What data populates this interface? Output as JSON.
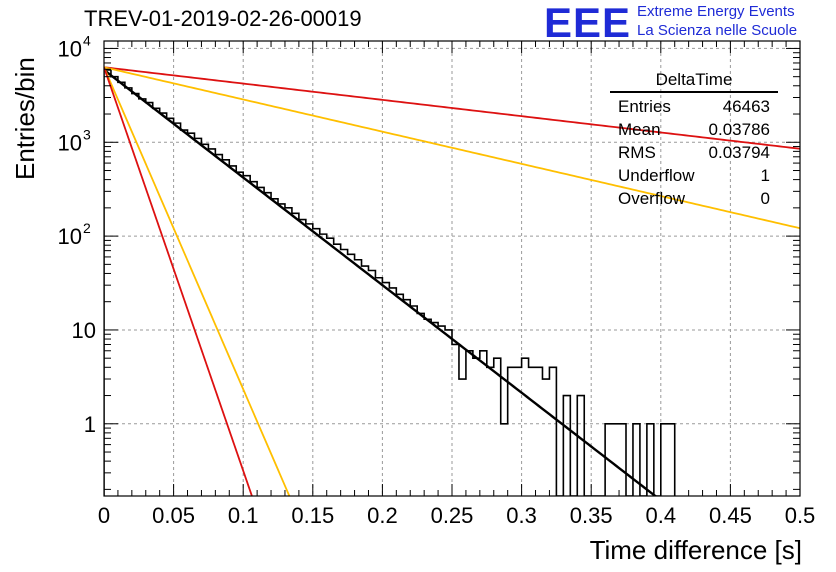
{
  "header": {
    "title": "TREV-01-2019-02-26-00019",
    "logo_text": "EEE",
    "logo_line1": "Extreme Energy Events",
    "logo_line2": "La Scienza nelle Scuole"
  },
  "stats": {
    "title": "DeltaTime",
    "rows": [
      {
        "key": "Entries",
        "value": "46463"
      },
      {
        "key": "Mean",
        "value": "0.03786"
      },
      {
        "key": "RMS",
        "value": "0.03794"
      },
      {
        "key": "Underflow",
        "value": "1"
      },
      {
        "key": "Overflow",
        "value": "0"
      }
    ]
  },
  "chart_data": {
    "type": "histogram",
    "title": "TREV-01-2019-02-26-00019",
    "xlabel": "Time difference [s]",
    "ylabel": "Entries/bin",
    "xlim": [
      0,
      0.5
    ],
    "ylim": [
      0.17,
      12000
    ],
    "ylog": true,
    "grid": true,
    "legend_position": "top-right",
    "x_ticks": [
      "0",
      "0.05",
      "0.1",
      "0.15",
      "0.2",
      "0.25",
      "0.3",
      "0.35",
      "0.4",
      "0.45",
      "0.5"
    ],
    "x_tick_values": [
      0,
      0.05,
      0.1,
      0.15,
      0.2,
      0.25,
      0.3,
      0.35,
      0.4,
      0.45,
      0.5
    ],
    "y_ticks": [
      {
        "value": 1,
        "label": "1",
        "sup": ""
      },
      {
        "value": 10,
        "label": "10",
        "sup": ""
      },
      {
        "value": 100,
        "label": "10",
        "sup": "2"
      },
      {
        "value": 1000,
        "label": "10",
        "sup": "3"
      },
      {
        "value": 10000,
        "label": "10",
        "sup": "4"
      }
    ],
    "bin_width": 0.005,
    "histogram": [
      {
        "x": 0.0,
        "y": 5900
      },
      {
        "x": 0.005,
        "y": 5000
      },
      {
        "x": 0.01,
        "y": 4350
      },
      {
        "x": 0.015,
        "y": 3800
      },
      {
        "x": 0.02,
        "y": 3300
      },
      {
        "x": 0.025,
        "y": 2900
      },
      {
        "x": 0.03,
        "y": 2650
      },
      {
        "x": 0.035,
        "y": 2300
      },
      {
        "x": 0.04,
        "y": 2050
      },
      {
        "x": 0.045,
        "y": 1800
      },
      {
        "x": 0.05,
        "y": 1600
      },
      {
        "x": 0.055,
        "y": 1350
      },
      {
        "x": 0.06,
        "y": 1250
      },
      {
        "x": 0.065,
        "y": 1100
      },
      {
        "x": 0.07,
        "y": 950
      },
      {
        "x": 0.075,
        "y": 850
      },
      {
        "x": 0.08,
        "y": 740
      },
      {
        "x": 0.085,
        "y": 650
      },
      {
        "x": 0.09,
        "y": 560
      },
      {
        "x": 0.095,
        "y": 480
      },
      {
        "x": 0.1,
        "y": 440
      },
      {
        "x": 0.105,
        "y": 380
      },
      {
        "x": 0.11,
        "y": 330
      },
      {
        "x": 0.115,
        "y": 290
      },
      {
        "x": 0.12,
        "y": 250
      },
      {
        "x": 0.125,
        "y": 220
      },
      {
        "x": 0.13,
        "y": 200
      },
      {
        "x": 0.135,
        "y": 175
      },
      {
        "x": 0.14,
        "y": 150
      },
      {
        "x": 0.145,
        "y": 135
      },
      {
        "x": 0.15,
        "y": 120
      },
      {
        "x": 0.155,
        "y": 105
      },
      {
        "x": 0.16,
        "y": 95
      },
      {
        "x": 0.165,
        "y": 82
      },
      {
        "x": 0.17,
        "y": 72
      },
      {
        "x": 0.175,
        "y": 64
      },
      {
        "x": 0.18,
        "y": 56
      },
      {
        "x": 0.185,
        "y": 48
      },
      {
        "x": 0.19,
        "y": 43
      },
      {
        "x": 0.195,
        "y": 36
      },
      {
        "x": 0.2,
        "y": 32
      },
      {
        "x": 0.205,
        "y": 28
      },
      {
        "x": 0.21,
        "y": 24
      },
      {
        "x": 0.215,
        "y": 21
      },
      {
        "x": 0.22,
        "y": 18
      },
      {
        "x": 0.225,
        "y": 15
      },
      {
        "x": 0.23,
        "y": 13
      },
      {
        "x": 0.235,
        "y": 12
      },
      {
        "x": 0.24,
        "y": 11
      },
      {
        "x": 0.245,
        "y": 10
      },
      {
        "x": 0.25,
        "y": 7
      },
      {
        "x": 0.255,
        "y": 3
      },
      {
        "x": 0.26,
        "y": 6
      },
      {
        "x": 0.265,
        "y": 5
      },
      {
        "x": 0.27,
        "y": 6
      },
      {
        "x": 0.275,
        "y": 4
      },
      {
        "x": 0.28,
        "y": 5
      },
      {
        "x": 0.285,
        "y": 1
      },
      {
        "x": 0.29,
        "y": 4
      },
      {
        "x": 0.295,
        "y": 4
      },
      {
        "x": 0.3,
        "y": 5
      },
      {
        "x": 0.305,
        "y": 4
      },
      {
        "x": 0.31,
        "y": 4
      },
      {
        "x": 0.315,
        "y": 3
      },
      {
        "x": 0.32,
        "y": 4
      },
      {
        "x": 0.325,
        "y": 0
      },
      {
        "x": 0.33,
        "y": 2
      },
      {
        "x": 0.335,
        "y": 0
      },
      {
        "x": 0.34,
        "y": 2
      },
      {
        "x": 0.345,
        "y": 0
      },
      {
        "x": 0.35,
        "y": 0
      },
      {
        "x": 0.355,
        "y": 0
      },
      {
        "x": 0.36,
        "y": 1
      },
      {
        "x": 0.365,
        "y": 1
      },
      {
        "x": 0.37,
        "y": 1
      },
      {
        "x": 0.375,
        "y": 0
      },
      {
        "x": 0.38,
        "y": 1
      },
      {
        "x": 0.385,
        "y": 0
      },
      {
        "x": 0.39,
        "y": 1
      },
      {
        "x": 0.395,
        "y": 0
      },
      {
        "x": 0.4,
        "y": 1
      },
      {
        "x": 0.405,
        "y": 1
      }
    ],
    "curves": [
      {
        "color": "#000000",
        "x_start": 0,
        "y_start": 5900,
        "decay_rate": 26.4,
        "x_end": 0.4
      },
      {
        "color": "#dd1111",
        "x_start": 0,
        "y_start": 6300,
        "decay_rate": 4.0,
        "x_end": 0.5
      },
      {
        "color": "#ffbf00",
        "x_start": 0,
        "y_start": 6300,
        "decay_rate": 7.9,
        "x_end": 0.5
      },
      {
        "color": "#ffbf00",
        "x_start": 0,
        "y_start": 6300,
        "decay_rate": 79,
        "x_end": 0.14
      },
      {
        "color": "#dd1111",
        "x_start": 0,
        "y_start": 6300,
        "decay_rate": 99,
        "x_end": 0.11
      }
    ]
  }
}
